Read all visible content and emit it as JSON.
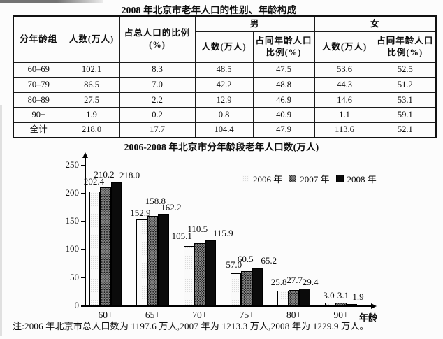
{
  "table": {
    "title": "2008 年北京市老年人口的性别、年龄构成",
    "headers": {
      "age_group": "分年龄组",
      "count": "人数(万人)",
      "pct_total": [
        "占总人口的比例",
        "(%)"
      ],
      "male": "男",
      "female": "女",
      "sub_count": "人数(万人)",
      "sub_pct": [
        "占同年龄人口",
        "比例(%)"
      ]
    },
    "rows": [
      [
        "60–69",
        "102.1",
        "8.3",
        "48.5",
        "47.5",
        "53.6",
        "52.5"
      ],
      [
        "70–79",
        "86.5",
        "7.0",
        "42.2",
        "48.8",
        "44.3",
        "51.2"
      ],
      [
        "80–89",
        "27.5",
        "2.2",
        "12.9",
        "46.9",
        "14.6",
        "53.1"
      ],
      [
        "90+",
        "1.9",
        "0.2",
        "0.8",
        "40.9",
        "1.1",
        "59.1"
      ],
      [
        "全计",
        "218.0",
        "17.7",
        "104.4",
        "47.9",
        "113.6",
        "52.1"
      ]
    ]
  },
  "chart_data": {
    "type": "bar",
    "title": "2006-2008 年北京市分年龄段老年人口数(万人)",
    "categories": [
      "60+",
      "65+",
      "70+",
      "75+",
      "80+",
      "90+"
    ],
    "series": [
      {
        "name": "2006 年",
        "values": [
          202.4,
          152.9,
          105.1,
          57.0,
          25.8,
          3.0
        ]
      },
      {
        "name": "2007 年",
        "values": [
          210.2,
          158.8,
          110.5,
          60.5,
          27.7,
          3.1
        ]
      },
      {
        "name": "2008 年",
        "values": [
          218.0,
          162.2,
          115.9,
          65.2,
          29.4,
          1.9
        ]
      }
    ],
    "xlabel": "年龄",
    "ylabel": "",
    "ylim": [
      0,
      250
    ],
    "yticks": [
      0,
      50,
      100,
      150,
      200,
      250
    ],
    "legend_position": "top-right",
    "grid": false,
    "label_offsets": [
      [
        [
          -1,
          -2
        ],
        [
          -2,
          -6
        ],
        [
          19,
          2
        ]
      ],
      [
        [
          -2,
          3
        ],
        [
          4,
          -9
        ],
        [
          11,
          3
        ]
      ],
      [
        [
          -10,
          -2
        ],
        [
          -3,
          -8
        ],
        [
          18,
          2
        ]
      ],
      [
        [
          -3,
          0
        ],
        [
          -2,
          -5
        ],
        [
          16,
          1
        ]
      ],
      [
        [
          -6,
          0
        ],
        [
          1,
          -2
        ],
        [
          8,
          3
        ]
      ],
      [
        [
          -2,
          2
        ],
        [
          3,
          2
        ],
        [
          9,
          2
        ]
      ]
    ]
  },
  "note": "注:2006 年北京市总人口数为 1197.6 万人,2007 年为 1213.3 万人,2008 年为 1229.9 万人。"
}
